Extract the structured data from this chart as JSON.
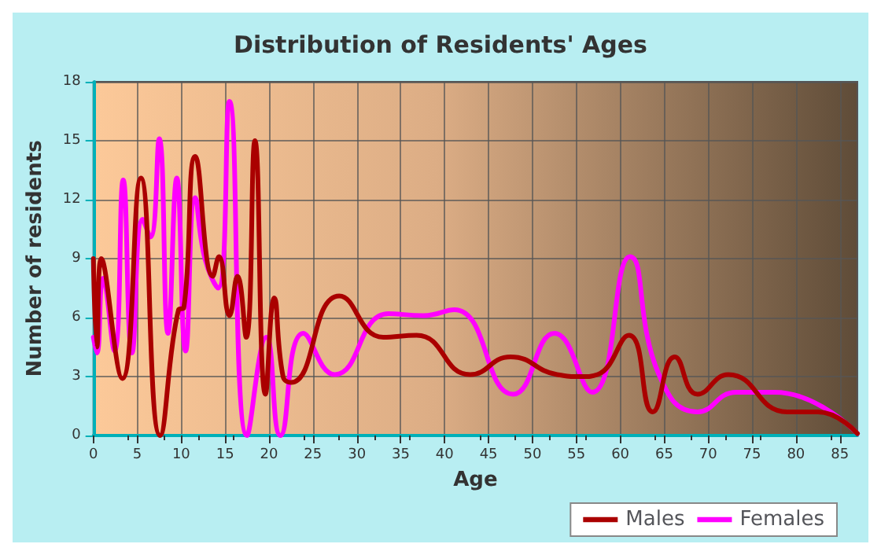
{
  "chart_data": {
    "type": "line",
    "title": "Distribution of Residents' Ages",
    "xlabel": "Age",
    "ylabel": "Number of residents",
    "xlim": [
      0,
      87
    ],
    "xticks": [
      0,
      5,
      10,
      15,
      20,
      25,
      30,
      35,
      40,
      45,
      50,
      55,
      60,
      65,
      70,
      75,
      80,
      85
    ],
    "ylim": [
      0,
      18
    ],
    "yticks": [
      0,
      3,
      6,
      9,
      12,
      15,
      18
    ],
    "grid": true,
    "legend": "bottom right",
    "marker": "none",
    "line_style": "solid",
    "series": [
      {
        "name": "Males",
        "color": "#aa0000",
        "x": [
          0,
          0.4,
          0.9,
          3.3,
          5.4,
          7.6,
          9.7,
          10.3,
          11.6,
          13.6,
          14.3,
          15.5,
          16.4,
          17.4,
          18.4,
          19.6,
          20.6,
          21.6,
          22.5,
          28,
          33,
          36.8,
          42.9,
          47.5,
          52.8,
          55.6,
          57.4,
          61,
          63.7,
          66.2,
          68.8,
          72.3,
          79,
          82.5,
          87
        ],
        "values": [
          9,
          4.5,
          9,
          2.9,
          13.1,
          0,
          6.4,
          6.5,
          14.2,
          8.1,
          9.1,
          6.1,
          8.1,
          5,
          15,
          2.1,
          7,
          3,
          2.7,
          7.1,
          5,
          5.1,
          3.1,
          4,
          3.1,
          3,
          3.1,
          5.1,
          1.2,
          4,
          2.1,
          3.1,
          1.2,
          1.2,
          0.1
        ]
      },
      {
        "name": "Females",
        "color": "#ff00ff",
        "x": [
          0,
          0.4,
          1.1,
          2.4,
          3.4,
          4.4,
          5.6,
          6.5,
          7.5,
          8.5,
          9.5,
          10.5,
          11.6,
          12.7,
          14.2,
          15.5,
          17.5,
          19.7,
          21.3,
          23.9,
          27.5,
          33.6,
          37.6,
          41.1,
          47.8,
          52.5,
          56.8,
          61.1,
          64.4,
          68.8,
          73.2,
          77.6,
          87
        ],
        "values": [
          5,
          4.2,
          8,
          4.3,
          13,
          4.2,
          11,
          10.1,
          15.1,
          5.2,
          13.1,
          4.3,
          12.1,
          9,
          7.5,
          17,
          0,
          5,
          0,
          5.2,
          3.1,
          6.2,
          6.1,
          6.4,
          2.1,
          5.2,
          2.2,
          9.1,
          3.1,
          1.2,
          2.2,
          2.2,
          0.1
        ]
      }
    ]
  }
}
